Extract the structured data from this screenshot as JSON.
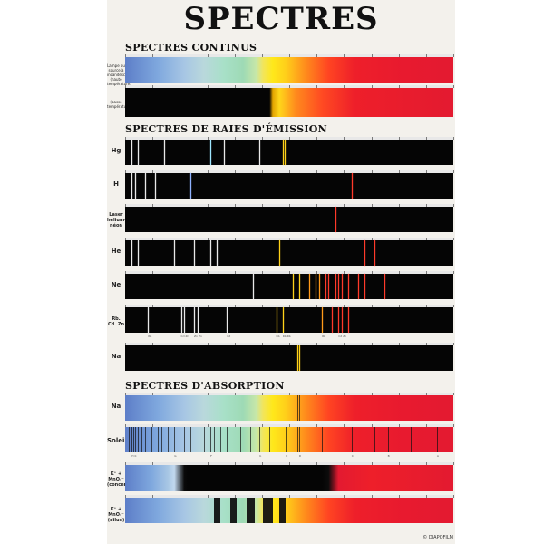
{
  "title": "SPECTRES",
  "credit": "© DIAPOFILM",
  "sections": {
    "continus": "SPECTRES CONTINUS",
    "emission": "SPECTRES DE RAIES D'ÉMISSION",
    "absorption": "SPECTRES D'ABSORPTION"
  },
  "labels": {
    "lampe_haute": "Lampe ou source à incandescence (haute température)",
    "lampe_basse": "(basse température)",
    "hg": "Hg",
    "h": "H",
    "laser_l1": "Laser",
    "laser_l2": "hélium-néon",
    "he": "He",
    "ne": "Ne",
    "rbcdzn": "Rb. Cd. Zn",
    "na_em": "Na",
    "na_abs": "Na",
    "soleil": "Soleil",
    "kmno4_conc_l1": "K⁺ + MnO₄⁻",
    "kmno4_conc_l2": "(concentré)",
    "kmno4_dil_l1": "K⁺ + MnO₄⁻",
    "kmno4_dil_l2": "(dilué)"
  },
  "colors": {
    "violet": "#7a86d8",
    "blue": "#8fb2ff",
    "cyan": "#9fe6ff",
    "green": "#b6ff7a",
    "yellow": "#ffd21a",
    "orange": "#ff9a1a",
    "red": "#ff3a2a",
    "white": "#e9e9e9"
  },
  "emission_lines": {
    "hg": [
      {
        "x": 0.02,
        "c": "white"
      },
      {
        "x": 0.04,
        "c": "white"
      },
      {
        "x": 0.12,
        "c": "white"
      },
      {
        "x": 0.26,
        "c": "cyan"
      },
      {
        "x": 0.3,
        "c": "white"
      },
      {
        "x": 0.41,
        "c": "white"
      },
      {
        "x": 0.48,
        "c": "yellow"
      },
      {
        "x": 0.485,
        "c": "yellow"
      }
    ],
    "h": [
      {
        "x": 0.02,
        "c": "white"
      },
      {
        "x": 0.03,
        "c": "white"
      },
      {
        "x": 0.06,
        "c": "white"
      },
      {
        "x": 0.09,
        "c": "white"
      },
      {
        "x": 0.2,
        "c": "blue"
      },
      {
        "x": 0.69,
        "c": "red"
      }
    ],
    "laser": [
      {
        "x": 0.64,
        "c": "red"
      }
    ],
    "he": [
      {
        "x": 0.02,
        "c": "white"
      },
      {
        "x": 0.04,
        "c": "white"
      },
      {
        "x": 0.15,
        "c": "white"
      },
      {
        "x": 0.21,
        "c": "white"
      },
      {
        "x": 0.26,
        "c": "white"
      },
      {
        "x": 0.28,
        "c": "white"
      },
      {
        "x": 0.47,
        "c": "yellow"
      },
      {
        "x": 0.73,
        "c": "red"
      },
      {
        "x": 0.76,
        "c": "red"
      }
    ],
    "ne": [
      {
        "x": 0.39,
        "c": "white"
      },
      {
        "x": 0.51,
        "c": "yellow"
      },
      {
        "x": 0.53,
        "c": "yellow"
      },
      {
        "x": 0.56,
        "c": "orange"
      },
      {
        "x": 0.58,
        "c": "orange"
      },
      {
        "x": 0.59,
        "c": "orange"
      },
      {
        "x": 0.61,
        "c": "red"
      },
      {
        "x": 0.62,
        "c": "red"
      },
      {
        "x": 0.64,
        "c": "red"
      },
      {
        "x": 0.65,
        "c": "red"
      },
      {
        "x": 0.66,
        "c": "red"
      },
      {
        "x": 0.68,
        "c": "red"
      },
      {
        "x": 0.71,
        "c": "red"
      },
      {
        "x": 0.73,
        "c": "red"
      },
      {
        "x": 0.79,
        "c": "red"
      }
    ],
    "rbcdzn": [
      {
        "x": 0.07,
        "c": "white"
      },
      {
        "x": 0.17,
        "c": "white"
      },
      {
        "x": 0.18,
        "c": "white"
      },
      {
        "x": 0.21,
        "c": "white"
      },
      {
        "x": 0.22,
        "c": "white"
      },
      {
        "x": 0.31,
        "c": "white"
      },
      {
        "x": 0.46,
        "c": "yellow"
      },
      {
        "x": 0.48,
        "c": "yellow"
      },
      {
        "x": 0.6,
        "c": "orange"
      },
      {
        "x": 0.63,
        "c": "red"
      },
      {
        "x": 0.65,
        "c": "red"
      },
      {
        "x": 0.66,
        "c": "red"
      },
      {
        "x": 0.68,
        "c": "red"
      }
    ],
    "na": [
      {
        "x": 0.525,
        "c": "yellow"
      },
      {
        "x": 0.53,
        "c": "yellow"
      }
    ]
  },
  "absorption_lines": {
    "na": [
      {
        "x": 0.525
      },
      {
        "x": 0.53
      }
    ],
    "soleil": [
      {
        "x": 0.01
      },
      {
        "x": 0.02
      },
      {
        "x": 0.025
      },
      {
        "x": 0.03
      },
      {
        "x": 0.04
      },
      {
        "x": 0.05
      },
      {
        "x": 0.06
      },
      {
        "x": 0.08
      },
      {
        "x": 0.1
      },
      {
        "x": 0.11
      },
      {
        "x": 0.13
      },
      {
        "x": 0.15
      },
      {
        "x": 0.18
      },
      {
        "x": 0.2
      },
      {
        "x": 0.24
      },
      {
        "x": 0.26
      },
      {
        "x": 0.27
      },
      {
        "x": 0.29
      },
      {
        "x": 0.31
      },
      {
        "x": 0.35
      },
      {
        "x": 0.38
      },
      {
        "x": 0.41
      },
      {
        "x": 0.44
      },
      {
        "x": 0.49
      },
      {
        "x": 0.525
      },
      {
        "x": 0.53
      },
      {
        "x": 0.6
      },
      {
        "x": 0.69
      },
      {
        "x": 0.76
      },
      {
        "x": 0.8
      },
      {
        "x": 0.87
      },
      {
        "x": 0.95
      }
    ],
    "kmno4_dilue": [
      {
        "x": 0.27,
        "w": 0.02
      },
      {
        "x": 0.32,
        "w": 0.02
      },
      {
        "x": 0.37,
        "w": 0.025
      },
      {
        "x": 0.42,
        "w": 0.03
      },
      {
        "x": 0.47,
        "w": 0.02
      }
    ]
  },
  "ruler_labels": {
    "rbcdzn": [
      "Rb",
      "Cd Zn",
      "Zn Zn",
      "Cd",
      "Rb",
      "Rb Rb",
      "Rb",
      "Cd Zn"
    ],
    "soleil": [
      "H K",
      "G",
      "F",
      "b",
      "E",
      "D",
      "C",
      "B",
      "A"
    ]
  }
}
